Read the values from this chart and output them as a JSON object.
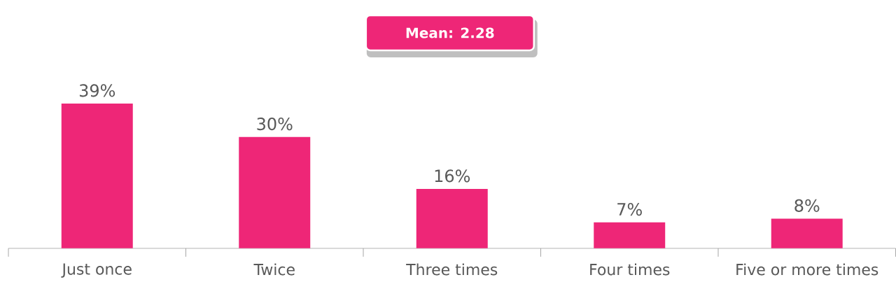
{
  "chart_data": {
    "type": "bar",
    "categories": [
      "Just once",
      "Twice",
      "Three times",
      "Four times",
      "Five or more times"
    ],
    "values": [
      39,
      30,
      16,
      7,
      8
    ],
    "value_labels": [
      "39%",
      "30%",
      "16%",
      "7%",
      "8%"
    ],
    "color": "#ee2677",
    "annotations": [
      "Mean: 2.28"
    ]
  }
}
